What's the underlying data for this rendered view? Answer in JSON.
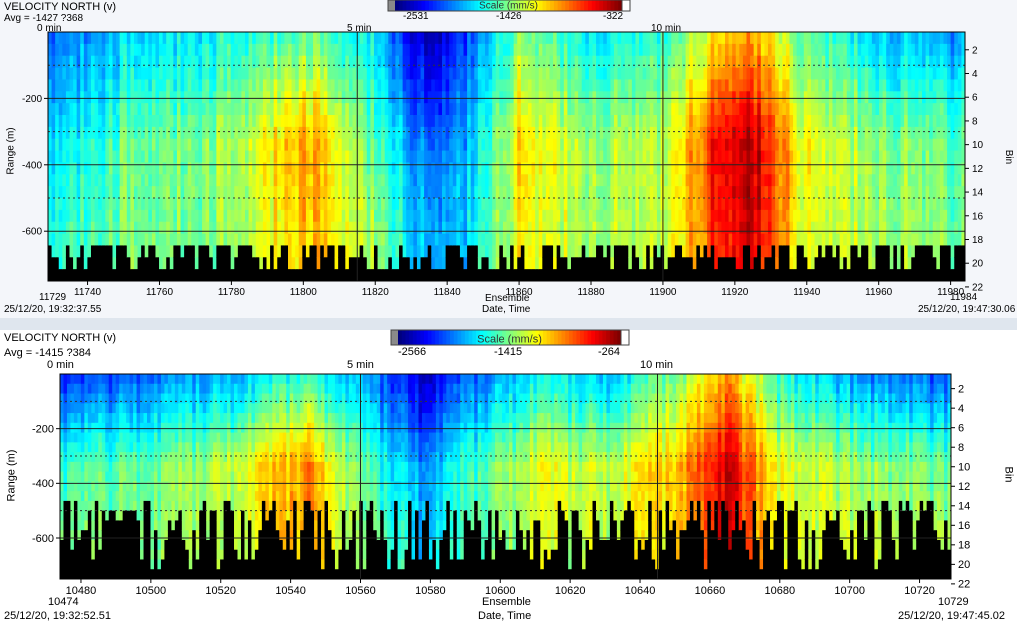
{
  "charts": [
    {
      "title": "VELOCITY NORTH (v)",
      "avg": "Avg = -1427 ?368",
      "scale": {
        "label": "Scale (mm/s)",
        "min": "-2531",
        "mid": "-1426",
        "max": "-322"
      },
      "time_labels": [
        "0 min",
        "5 min",
        "10 min"
      ],
      "xlabel": "Ensemble",
      "xlabel2": "Date, Time",
      "ylabel": "Range (m)",
      "ylabel_right": "Bin",
      "start_ensemble": "11729",
      "end_ensemble": "11984",
      "start_time": "25/12/20, 19:32:37.55",
      "end_time": "25/12/20, 19:47:30.06"
    },
    {
      "title": "VELOCITY NORTH (v)",
      "avg": "Avg = -1415 ?384",
      "scale": {
        "label": "Scale (mm/s)",
        "min": "-2566",
        "mid": "-1415",
        "max": "-264"
      },
      "time_labels": [
        "0 min",
        "5 min",
        "10 min"
      ],
      "xlabel": "Ensemble",
      "xlabel2": "Date, Time",
      "ylabel": "Range (m)",
      "ylabel_right": "Bin",
      "start_ensemble": "10474",
      "end_ensemble": "10729",
      "start_time": "25/12/20, 19:32:52.51",
      "end_time": "25/12/20, 19:47:45.02"
    }
  ],
  "chart_data": [
    {
      "type": "heatmap",
      "title": "VELOCITY NORTH (v)",
      "xlabel": "Ensemble",
      "ylabel": "Range (m)",
      "xlim": [
        11729,
        11984
      ],
      "ylim": [
        -750,
        0
      ],
      "x_ticks": [
        11740,
        11760,
        11780,
        11800,
        11820,
        11840,
        11860,
        11880,
        11900,
        11920,
        11940,
        11960,
        11980
      ],
      "y_ticks": [
        -200,
        -400,
        -600
      ],
      "bin_ticks": [
        2,
        4,
        6,
        8,
        10,
        12,
        14,
        16,
        18,
        20,
        22
      ],
      "time_markers": [
        {
          "label": "0 min",
          "ensemble": 11729
        },
        {
          "label": "5 min",
          "ensemble": 11815
        },
        {
          "label": "10 min",
          "ensemble": 11900
        }
      ],
      "color_scale": {
        "unit": "mm/s",
        "min": -2531,
        "mid": -1426,
        "max": -322
      },
      "profile_columns": [
        {
          "ensemble": 11729,
          "bin1_mm_s": -2000,
          "bin10_mm_s": -1750,
          "bin18_mm_s": -1600
        },
        {
          "ensemble": 11750,
          "bin1_mm_s": -1800,
          "bin10_mm_s": -1500,
          "bin18_mm_s": -1450
        },
        {
          "ensemble": 11780,
          "bin1_mm_s": -1650,
          "bin10_mm_s": -1380,
          "bin18_mm_s": -1400
        },
        {
          "ensemble": 11800,
          "bin1_mm_s": -1450,
          "bin10_mm_s": -900,
          "bin18_mm_s": -1000
        },
        {
          "ensemble": 11820,
          "bin1_mm_s": -1750,
          "bin10_mm_s": -1500,
          "bin18_mm_s": -1350
        },
        {
          "ensemble": 11835,
          "bin1_mm_s": -2450,
          "bin10_mm_s": -2050,
          "bin18_mm_s": -1900
        },
        {
          "ensemble": 11845,
          "bin1_mm_s": -2100,
          "bin10_mm_s": -1900,
          "bin18_mm_s": -1800
        },
        {
          "ensemble": 11860,
          "bin1_mm_s": -1400,
          "bin10_mm_s": -1100,
          "bin18_mm_s": -1150
        },
        {
          "ensemble": 11880,
          "bin1_mm_s": -1700,
          "bin10_mm_s": -1350,
          "bin18_mm_s": -1350
        },
        {
          "ensemble": 11900,
          "bin1_mm_s": -1600,
          "bin10_mm_s": -1300,
          "bin18_mm_s": -1300
        },
        {
          "ensemble": 11915,
          "bin1_mm_s": -1100,
          "bin10_mm_s": -600,
          "bin18_mm_s": -700
        },
        {
          "ensemble": 11925,
          "bin1_mm_s": -950,
          "bin10_mm_s": -450,
          "bin18_mm_s": -500
        },
        {
          "ensemble": 11940,
          "bin1_mm_s": -1500,
          "bin10_mm_s": -1200,
          "bin18_mm_s": -1250
        },
        {
          "ensemble": 11960,
          "bin1_mm_s": -1800,
          "bin10_mm_s": -1400,
          "bin18_mm_s": -1350
        },
        {
          "ensemble": 11984,
          "bin1_mm_s": -1900,
          "bin10_mm_s": -1500,
          "bin18_mm_s": -1450
        }
      ]
    },
    {
      "type": "heatmap",
      "title": "VELOCITY NORTH (v)",
      "xlabel": "Ensemble",
      "ylabel": "Range (m)",
      "xlim": [
        10474,
        10729
      ],
      "ylim": [
        -750,
        0
      ],
      "x_ticks": [
        10480,
        10500,
        10520,
        10540,
        10560,
        10580,
        10600,
        10620,
        10640,
        10660,
        10680,
        10700,
        10720
      ],
      "y_ticks": [
        -200,
        -400,
        -600
      ],
      "bin_ticks": [
        2,
        4,
        6,
        8,
        10,
        12,
        14,
        16,
        18,
        20,
        22
      ],
      "time_markers": [
        {
          "label": "0 min",
          "ensemble": 10474
        },
        {
          "label": "5 min",
          "ensemble": 10560
        },
        {
          "label": "10 min",
          "ensemble": 10645
        }
      ],
      "color_scale": {
        "unit": "mm/s",
        "min": -2566,
        "mid": -1415,
        "max": -264
      },
      "profile_columns": [
        {
          "ensemble": 10474,
          "bin1_mm_s": -2200,
          "bin10_mm_s": -1600,
          "bin18_mm_s": -1500
        },
        {
          "ensemble": 10500,
          "bin1_mm_s": -2000,
          "bin10_mm_s": -1450,
          "bin18_mm_s": -1400
        },
        {
          "ensemble": 10520,
          "bin1_mm_s": -1900,
          "bin10_mm_s": -1300,
          "bin18_mm_s": -1350
        },
        {
          "ensemble": 10545,
          "bin1_mm_s": -1550,
          "bin10_mm_s": -850,
          "bin18_mm_s": -900
        },
        {
          "ensemble": 10560,
          "bin1_mm_s": -1900,
          "bin10_mm_s": -1500,
          "bin18_mm_s": -1400
        },
        {
          "ensemble": 10578,
          "bin1_mm_s": -2400,
          "bin10_mm_s": -1950,
          "bin18_mm_s": -1800
        },
        {
          "ensemble": 10590,
          "bin1_mm_s": -2100,
          "bin10_mm_s": -1650,
          "bin18_mm_s": -1600
        },
        {
          "ensemble": 10610,
          "bin1_mm_s": -1700,
          "bin10_mm_s": -1200,
          "bin18_mm_s": -1250
        },
        {
          "ensemble": 10630,
          "bin1_mm_s": -1850,
          "bin10_mm_s": -1300,
          "bin18_mm_s": -1300
        },
        {
          "ensemble": 10650,
          "bin1_mm_s": -1400,
          "bin10_mm_s": -1000,
          "bin18_mm_s": -1050
        },
        {
          "ensemble": 10665,
          "bin1_mm_s": -900,
          "bin10_mm_s": -450,
          "bin18_mm_s": -500
        },
        {
          "ensemble": 10680,
          "bin1_mm_s": -1600,
          "bin10_mm_s": -1200,
          "bin18_mm_s": -1200
        },
        {
          "ensemble": 10700,
          "bin1_mm_s": -1900,
          "bin10_mm_s": -1350,
          "bin18_mm_s": -1300
        },
        {
          "ensemble": 10729,
          "bin1_mm_s": -2100,
          "bin10_mm_s": -1500,
          "bin18_mm_s": -1400
        }
      ]
    }
  ]
}
